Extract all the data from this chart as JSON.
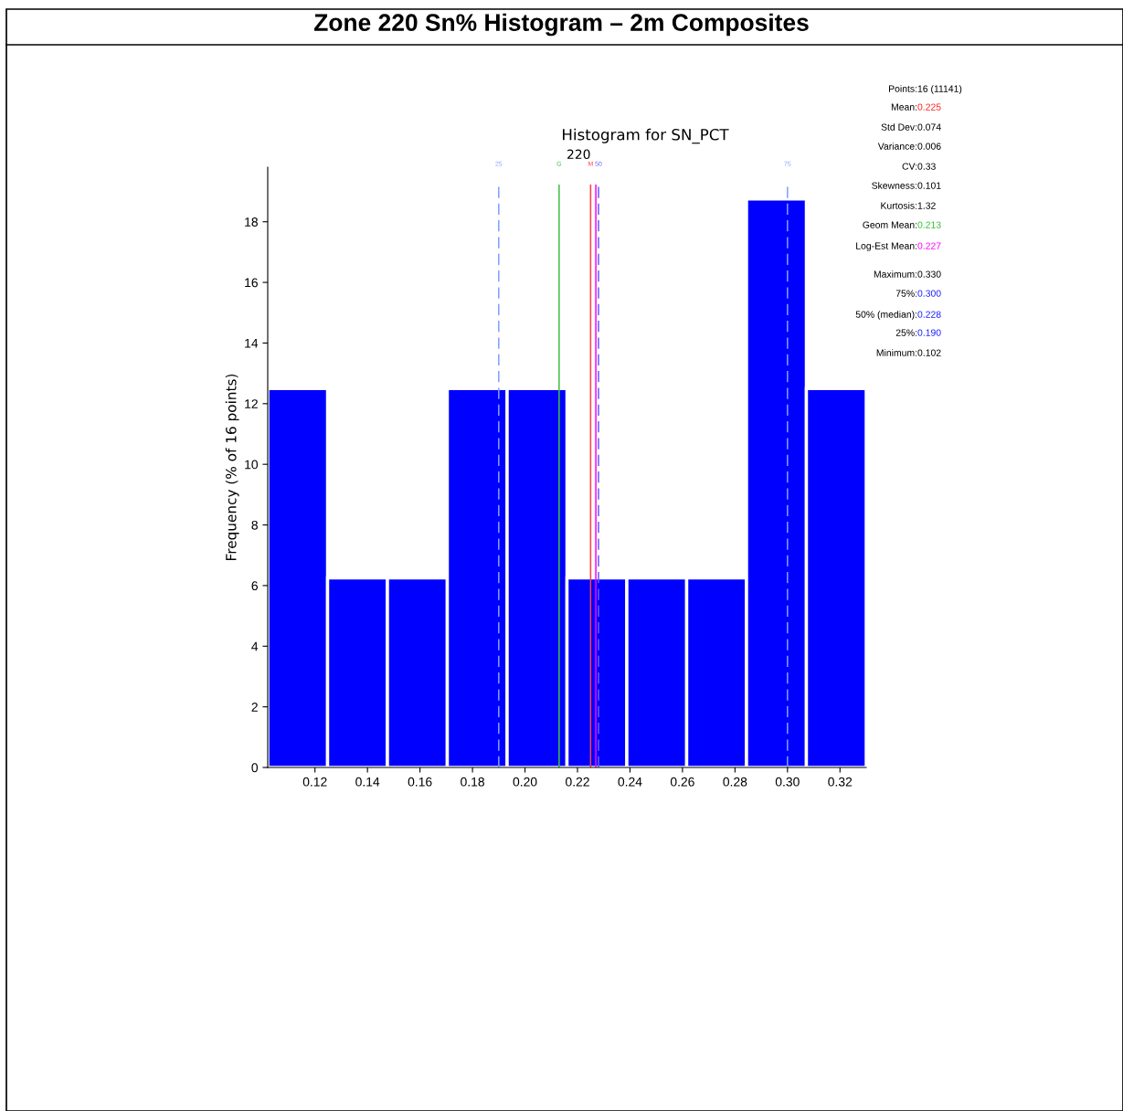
{
  "chart_data": {
    "type": "histogram",
    "title": "Zone 220 Sn% Histogram – 2m Composites",
    "subtitle": "Histogram for SN_PCT",
    "ylabel": "Frequency (% of 16 points)",
    "bins": [
      0.102,
      0.1248,
      0.1476,
      0.1704,
      0.1932,
      0.216,
      0.2388,
      0.2616,
      0.2844,
      0.3072,
      0.33
    ],
    "values": [
      12.5,
      6.25,
      6.25,
      12.5,
      12.5,
      6.25,
      6.25,
      6.25,
      18.75,
      12.5
    ],
    "color": "#0000ff",
    "xlim": [
      0.102,
      0.33
    ],
    "xticks": [
      0.12,
      0.14,
      0.16,
      0.18,
      {
        "value": 0.2,
        "label": "0.20"
      },
      0.22,
      0.24,
      0.26,
      0.28,
      {
        "value": 0.3,
        "label": "0.30"
      },
      0.32
    ],
    "ylim": [
      0,
      19.8
    ],
    "yticks": [
      0,
      2,
      4,
      6,
      8,
      10,
      12,
      14,
      16,
      18
    ],
    "grid": false,
    "ref_lines": [
      {
        "axis": "x",
        "value": 0.19,
        "color": "#7f9fff",
        "line_style": "dashed"
      },
      {
        "axis": "x",
        "value": 0.213,
        "label": "G",
        "color": "#40c040",
        "line_style": "solid"
      },
      {
        "axis": "x",
        "value": 0.225,
        "label": "M",
        "color": "#ff4040",
        "line_style": "solid"
      },
      {
        "axis": "x",
        "value": 0.227,
        "label": null,
        "color": "#ff00ff",
        "line_style": "solid"
      },
      {
        "axis": "x",
        "value": 0.228,
        "color": "#6060ff",
        "line_style": "dashed"
      },
      {
        "axis": "x",
        "value": 0.3,
        "color": "#7f9fff",
        "line_style": "dashed"
      }
    ],
    "annotations": [
      "220",
      "25",
      "50",
      "75",
      "Points:",
      "16 (11141)",
      "Mean:",
      "0.225",
      "Std Dev:",
      "0.074",
      "Variance:",
      "0.006",
      "CV:",
      "0.33",
      "Skewness:",
      "0.101",
      "Kurtosis:",
      "1.32",
      "Geom Mean:",
      "0.213",
      "Log-Est Mean:",
      "0.227",
      "Maximum:",
      "0.330",
      "75%:",
      "0.300",
      "50% (median):",
      "0.228",
      "25%:",
      "0.190",
      "Minimum:",
      "0.102"
    ]
  }
}
